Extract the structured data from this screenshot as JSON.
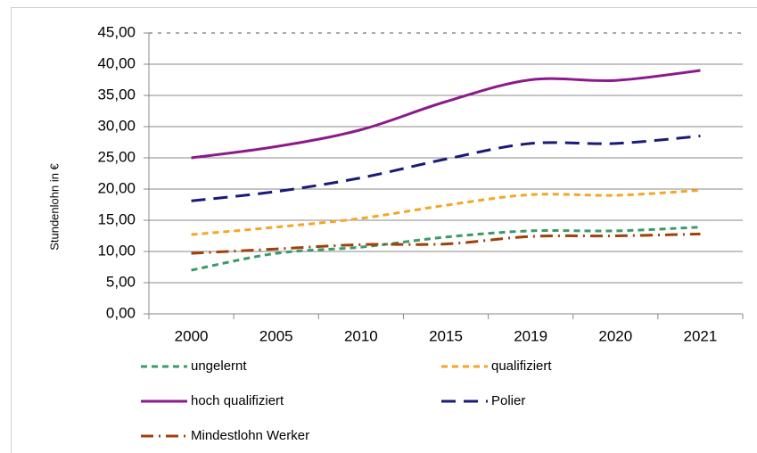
{
  "chart_data": {
    "type": "line",
    "y_label": "Stundenlohn in €",
    "categories": [
      "2000",
      "2005",
      "2010",
      "2015",
      "2019",
      "2020",
      "2021"
    ],
    "series": [
      {
        "name": "ungelernt",
        "color": "#3a9a6a",
        "style": "dashed",
        "values": [
          7.0,
          9.7,
          10.7,
          12.3,
          13.3,
          13.3,
          13.9
        ]
      },
      {
        "name": "qualifiziert",
        "color": "#f5a623",
        "style": "dashed",
        "values": [
          12.7,
          13.9,
          15.3,
          17.4,
          19.1,
          19.0,
          19.8
        ]
      },
      {
        "name": "hoch qualifiziert",
        "color": "#8b1a8b",
        "style": "solid",
        "values": [
          25.0,
          26.8,
          29.5,
          34.0,
          37.5,
          37.4,
          39.0
        ]
      },
      {
        "name": "Polier",
        "color": "#1a1a7a",
        "style": "longdash",
        "values": [
          18.1,
          19.6,
          21.8,
          24.8,
          27.3,
          27.3,
          28.5
        ]
      },
      {
        "name": "Mindestlohn Werker",
        "color": "#a0400a",
        "style": "dashdot",
        "values": [
          9.7,
          10.4,
          11.1,
          11.2,
          12.4,
          12.5,
          12.8
        ]
      }
    ],
    "ylim": [
      0,
      45
    ],
    "yticks": [
      {
        "value": 0,
        "label": "0,00"
      },
      {
        "value": 5,
        "label": "5,00"
      },
      {
        "value": 10,
        "label": "10,00"
      },
      {
        "value": 15,
        "label": "15,00"
      },
      {
        "value": 20,
        "label": "20,00"
      },
      {
        "value": 25,
        "label": "25,00"
      },
      {
        "value": 30,
        "label": "30,00"
      },
      {
        "value": 35,
        "label": "35,00"
      },
      {
        "value": 40,
        "label": "40,00"
      },
      {
        "value": 45,
        "label": "45,00"
      }
    ],
    "grid": true
  }
}
